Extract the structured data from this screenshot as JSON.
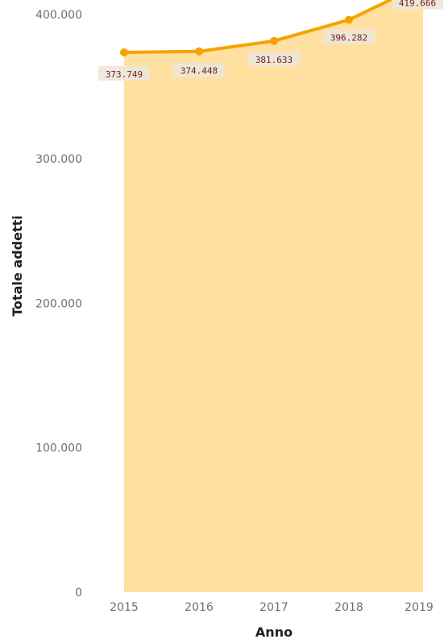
{
  "chart_data": {
    "type": "area",
    "title": "",
    "xlabel": "Anno",
    "ylabel": "Totale addetti",
    "categories": [
      "2015",
      "2016",
      "2017",
      "2018",
      "2019"
    ],
    "values": [
      373749,
      374448,
      381633,
      396282,
      419666
    ],
    "data_labels": [
      "373.749",
      "374.448",
      "381.633",
      "396.282",
      "419.666"
    ],
    "y_ticks": [
      0,
      100000,
      200000,
      300000,
      400000
    ],
    "y_tick_labels": [
      "0",
      "100.000",
      "200.000",
      "300.000",
      "400.000"
    ],
    "ylim": [
      0,
      410000
    ],
    "grid": false,
    "legend": "none",
    "colors": {
      "line": "#f5a300",
      "area": "#ffe0a0",
      "label_bg": "#ede6da",
      "label_text": "#6b1e1e"
    }
  }
}
